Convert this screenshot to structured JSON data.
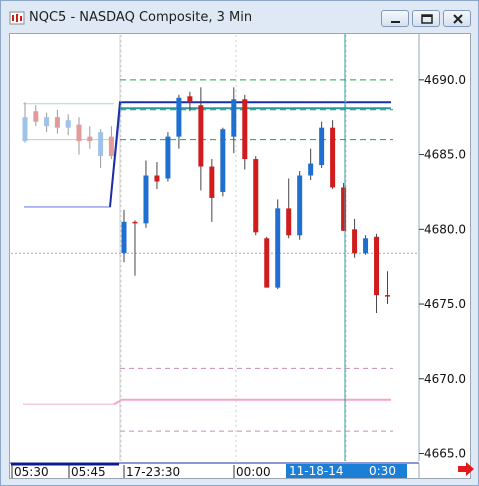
{
  "window": {
    "title": "NQC5 - NASDAQ Composite, 3 Min",
    "buttons": [
      "minimize",
      "restore",
      "close"
    ]
  },
  "colors": {
    "up": "#1f6fd1",
    "down": "#d01c1c",
    "up_faded": "#9fc2ea",
    "down_faded": "#e39a9a",
    "cursor_line": "#2f9aa2",
    "green_dash": "#1fa44a",
    "blue_line": "#1a2fa6",
    "teal_line": "#2a98a3",
    "pink_line": "#f5a3c8",
    "pink_dash": "#c48fb8",
    "axis_highlight": "#1c7fd6"
  },
  "chart_data": {
    "type": "candlestick",
    "y_axis": {
      "range": [
        4664.5,
        4693
      ],
      "ticks": [
        "4690.0",
        "4685.0",
        "4680.0",
        "4675.0",
        "4670.0",
        "4665.0"
      ]
    },
    "x_axis": {
      "labels": [
        "05:30",
        "05:45",
        "17-23:30",
        "00:00",
        "0:30"
      ],
      "highlight_label": "11-18-14",
      "cursor_label": "0:30"
    },
    "prior_session": [
      {
        "o": 4687.5,
        "h": 4688.5,
        "l": 4685.8,
        "c": 4685.9,
        "dir": "up"
      },
      {
        "o": 4687.9,
        "h": 4688.3,
        "l": 4686.9,
        "c": 4687.2,
        "dir": "down"
      },
      {
        "o": 4686.9,
        "h": 4687.8,
        "l": 4686.5,
        "c": 4687.5,
        "dir": "up"
      },
      {
        "o": 4687.5,
        "h": 4688.0,
        "l": 4686.4,
        "c": 4686.8,
        "dir": "down"
      },
      {
        "o": 4686.8,
        "h": 4687.7,
        "l": 4686.3,
        "c": 4687.3,
        "dir": "up"
      },
      {
        "o": 4687.0,
        "h": 4687.5,
        "l": 4685.0,
        "c": 4685.9,
        "dir": "down"
      },
      {
        "o": 4685.9,
        "h": 4686.9,
        "l": 4685.4,
        "c": 4686.2,
        "dir": "down"
      },
      {
        "o": 4684.9,
        "h": 4686.7,
        "l": 4684.1,
        "c": 4686.5,
        "dir": "up"
      },
      {
        "o": 4686.2,
        "h": 4686.9,
        "l": 4684.7,
        "c": 4684.9,
        "dir": "down"
      }
    ],
    "candles": [
      {
        "o": 4678.4,
        "h": 4681.3,
        "l": 4677.8,
        "c": 4680.5,
        "dir": "up"
      },
      {
        "o": 4680.5,
        "h": 4680.6,
        "l": 4676.9,
        "c": 4680.4,
        "dir": "down"
      },
      {
        "o": 4680.4,
        "h": 4684.6,
        "l": 4680.1,
        "c": 4683.6,
        "dir": "up"
      },
      {
        "o": 4683.6,
        "h": 4684.5,
        "l": 4682.7,
        "c": 4683.2,
        "dir": "down"
      },
      {
        "o": 4683.4,
        "h": 4686.5,
        "l": 4683.2,
        "c": 4686.2,
        "dir": "up"
      },
      {
        "o": 4686.2,
        "h": 4689.0,
        "l": 4685.4,
        "c": 4688.8,
        "dir": "up"
      },
      {
        "o": 4688.9,
        "h": 4689.2,
        "l": 4687.9,
        "c": 4688.5,
        "dir": "down"
      },
      {
        "o": 4688.3,
        "h": 4689.5,
        "l": 4682.6,
        "c": 4684.2,
        "dir": "down"
      },
      {
        "o": 4684.2,
        "h": 4684.7,
        "l": 4680.5,
        "c": 4682.1,
        "dir": "down"
      },
      {
        "o": 4682.5,
        "h": 4686.8,
        "l": 4682.2,
        "c": 4686.7,
        "dir": "up"
      },
      {
        "o": 4686.2,
        "h": 4689.5,
        "l": 4685.1,
        "c": 4688.7,
        "dir": "up"
      },
      {
        "o": 4688.7,
        "h": 4689.0,
        "l": 4684.0,
        "c": 4684.7,
        "dir": "down"
      },
      {
        "o": 4684.7,
        "h": 4684.9,
        "l": 4679.6,
        "c": 4679.8,
        "dir": "down"
      },
      {
        "o": 4679.4,
        "h": 4679.5,
        "l": 4676.1,
        "c": 4676.1,
        "dir": "down"
      },
      {
        "o": 4676.1,
        "h": 4682.0,
        "l": 4676.0,
        "c": 4681.4,
        "dir": "up"
      },
      {
        "o": 4681.4,
        "h": 4683.4,
        "l": 4679.4,
        "c": 4679.6,
        "dir": "down"
      },
      {
        "o": 4679.6,
        "h": 4683.9,
        "l": 4679.3,
        "c": 4683.6,
        "dir": "up"
      },
      {
        "o": 4683.6,
        "h": 4685.4,
        "l": 4683.3,
        "c": 4684.4,
        "dir": "up"
      },
      {
        "o": 4684.3,
        "h": 4687.2,
        "l": 4684.1,
        "c": 4686.8,
        "dir": "up"
      },
      {
        "o": 4686.8,
        "h": 4687.3,
        "l": 4682.7,
        "c": 4682.8,
        "dir": "down"
      },
      {
        "o": 4682.8,
        "h": 4683.1,
        "l": 4679.9,
        "c": 4679.9,
        "dir": "down"
      },
      {
        "o": 4680.0,
        "h": 4680.7,
        "l": 4678.1,
        "c": 4678.4,
        "dir": "down"
      },
      {
        "o": 4678.4,
        "h": 4679.6,
        "l": 4678.3,
        "c": 4679.4,
        "dir": "up"
      },
      {
        "o": 4679.5,
        "h": 4679.7,
        "l": 4674.4,
        "c": 4675.6,
        "dir": "down"
      },
      {
        "o": 4675.6,
        "h": 4677.2,
        "l": 4675.0,
        "c": 4675.5,
        "dir": "down"
      }
    ],
    "levels": {
      "green_dashed": [
        4690.0,
        4688.0,
        4686.0
      ],
      "grey_dotted_price": 4678.4,
      "blue_solid": 4688.5,
      "teal_solid": 4688.1,
      "prior_blue": 4681.5,
      "prior_teal": 4688.4,
      "prior_grey": 4686.0,
      "pink_dashed": [
        4670.7,
        4666.5
      ],
      "pink_solid": 4668.6,
      "prior_pink": 4668.3
    }
  }
}
